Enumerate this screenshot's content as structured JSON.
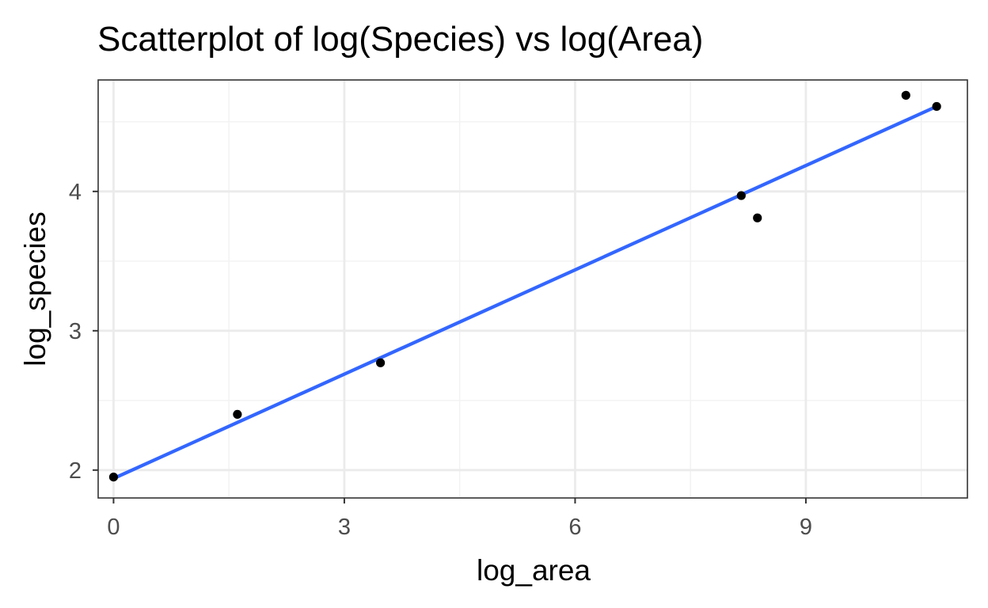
{
  "chart_data": {
    "type": "scatter",
    "title": "Scatterplot of log(Species) vs log(Area)",
    "xlabel": "log_area",
    "ylabel": "log_species",
    "xlim": [
      -0.2,
      11.1
    ],
    "ylim": [
      1.8,
      4.8
    ],
    "x_ticks": [
      0,
      3,
      6,
      9
    ],
    "x_tick_labels": [
      "0",
      "3",
      "6",
      "9"
    ],
    "y_ticks": [
      2,
      3,
      4
    ],
    "y_tick_labels": [
      "2",
      "3",
      "4"
    ],
    "x_minor_ticks": [
      1.5,
      4.5,
      7.5,
      10.5
    ],
    "y_minor_ticks": [
      2.5,
      3.5,
      4.5
    ],
    "grid": true,
    "legend": "none",
    "series": [
      {
        "kind": "points",
        "color": "#000000",
        "points": [
          {
            "x": 0.0,
            "y": 1.95
          },
          {
            "x": 1.61,
            "y": 2.4
          },
          {
            "x": 3.47,
            "y": 2.77
          },
          {
            "x": 8.16,
            "y": 3.97
          },
          {
            "x": 8.37,
            "y": 3.81
          },
          {
            "x": 10.3,
            "y": 4.69
          },
          {
            "x": 10.7,
            "y": 4.61
          }
        ]
      },
      {
        "kind": "fit-line",
        "color": "#3366FF",
        "points": [
          {
            "x": 0.0,
            "y": 1.94
          },
          {
            "x": 10.7,
            "y": 4.61
          }
        ]
      }
    ],
    "colors": {
      "panel_border": "#333333",
      "grid_major": "#ebebeb",
      "grid_minor": "#f2f2f2",
      "tick": "#333333",
      "tick_label": "#4d4d4d"
    }
  }
}
